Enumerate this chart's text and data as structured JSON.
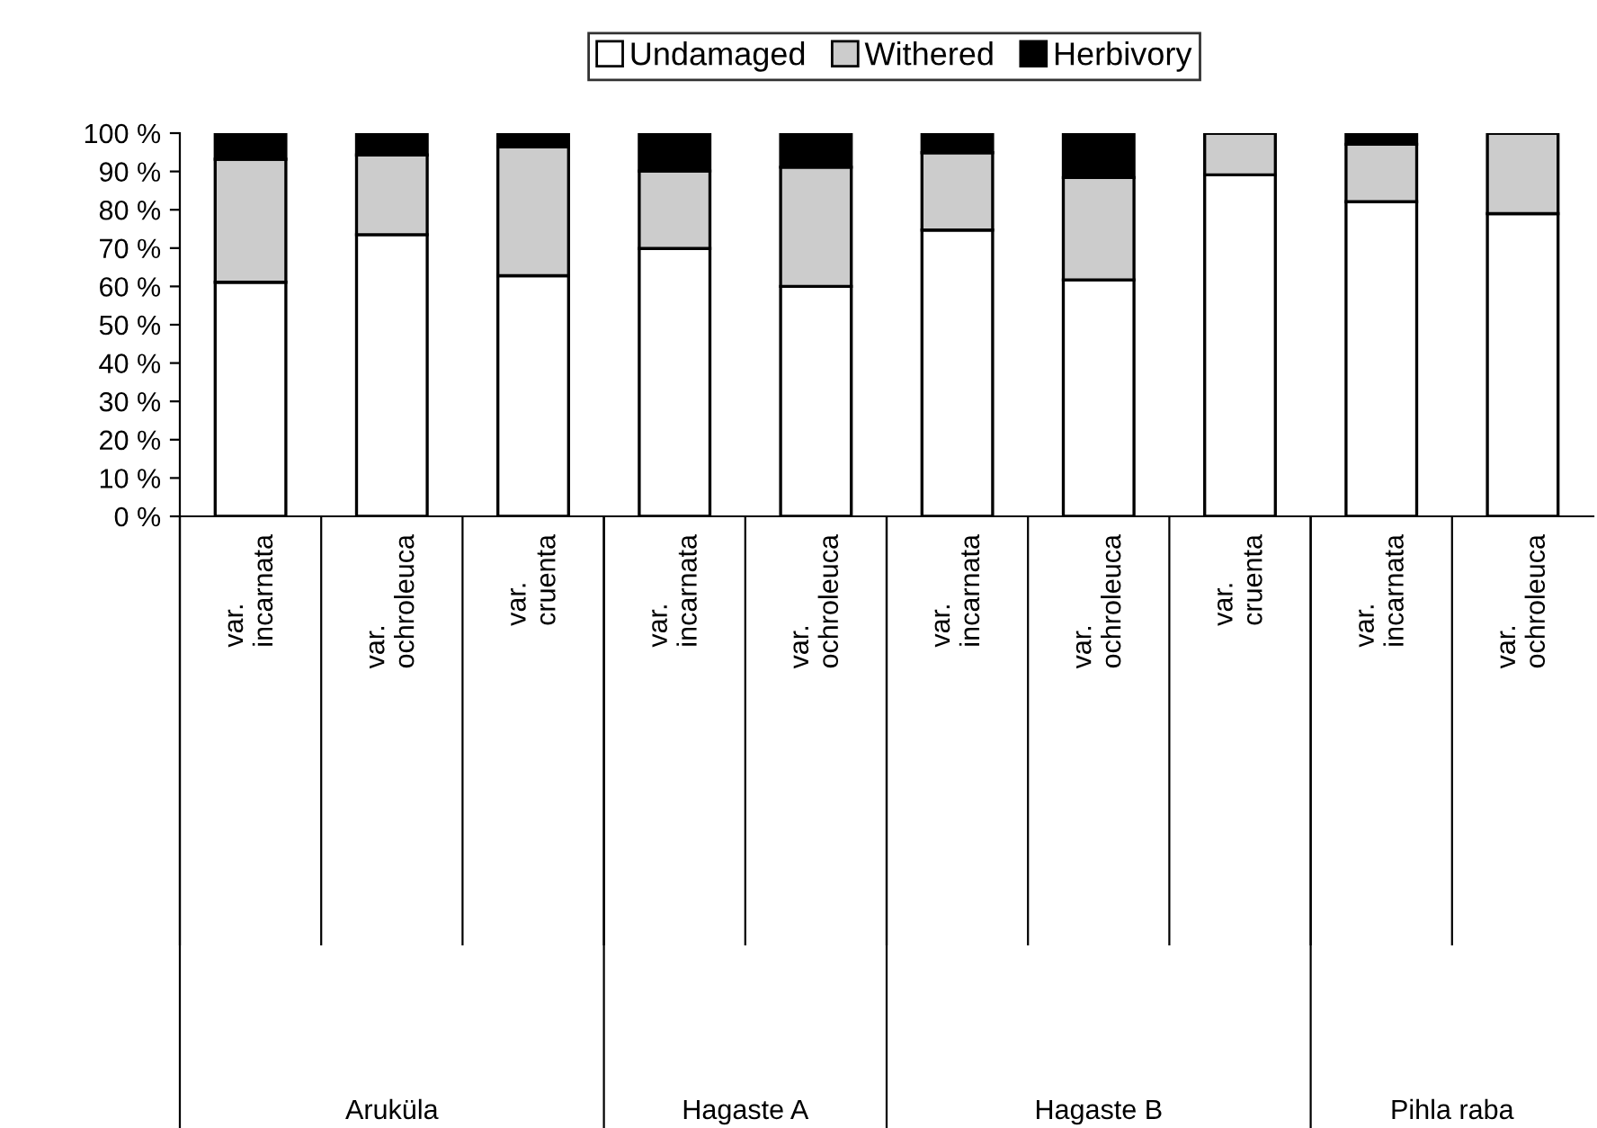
{
  "chart_data": {
    "type": "bar",
    "stacked": true,
    "categories": [
      "var.\nincarnata",
      "var.\nochroleuca",
      "var.\ncruenta",
      "var.\nincarnata",
      "var.\nochroleuca",
      "var.\nincarnata",
      "var.\nochroleuca",
      "var.\ncruenta",
      "var.\nincarnata",
      "var.\nochroleuca"
    ],
    "series": [
      {
        "name": "Undamaged",
        "color": "#ffffff",
        "values": [
          61.1,
          73.5,
          62.8,
          69.9,
          60.0,
          74.7,
          61.7,
          89.1,
          82.1,
          79.0
        ]
      },
      {
        "name": "Withered",
        "color": "#cccccc",
        "values": [
          32.1,
          20.8,
          33.6,
          20.2,
          31.1,
          20.2,
          26.7,
          10.9,
          15.0,
          21.0
        ]
      },
      {
        "name": "Herbivory",
        "color": "#000000",
        "values": [
          6.8,
          5.7,
          3.6,
          9.9,
          8.9,
          5.1,
          11.6,
          0,
          2.9,
          0
        ]
      }
    ],
    "ylim": [
      0,
      100
    ],
    "yticks": [
      {
        "value": 0,
        "label": "0 %"
      },
      {
        "value": 10,
        "label": "10 %"
      },
      {
        "value": 20,
        "label": "20 %"
      },
      {
        "value": 30,
        "label": "30 %"
      },
      {
        "value": 40,
        "label": "40 %"
      },
      {
        "value": 50,
        "label": "50 %"
      },
      {
        "value": 60,
        "label": "60 %"
      },
      {
        "value": 70,
        "label": "70 %"
      },
      {
        "value": 80,
        "label": "80 %"
      },
      {
        "value": 90,
        "label": "90 %"
      },
      {
        "value": 100,
        "label": "100 %"
      }
    ],
    "annotations": [
      "Aruküla",
      "Hagaste A",
      "Hagaste B",
      "Pihla raba"
    ],
    "legend": "top",
    "grid": false
  }
}
